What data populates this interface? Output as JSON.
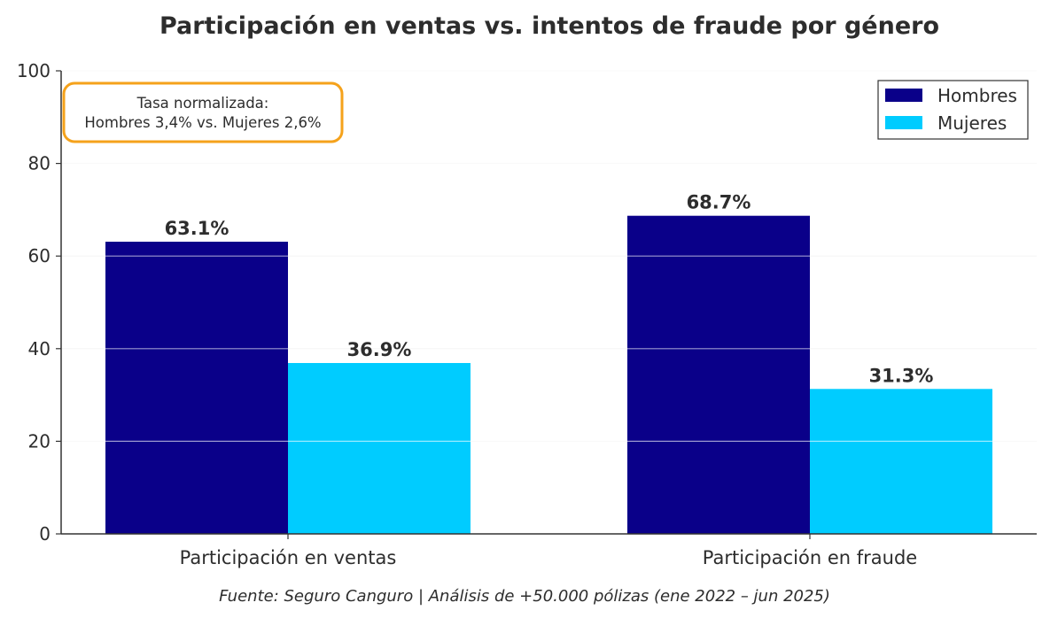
{
  "chart_data": {
    "type": "bar",
    "title": "Participación en ventas vs. intentos de fraude por género",
    "categories": [
      "Participación en ventas",
      "Participación en fraude"
    ],
    "series": [
      {
        "name": "Hombres",
        "values": [
          63.1,
          68.7
        ],
        "labels": [
          "63.1%",
          "68.7%"
        ],
        "color": "#0a0089"
      },
      {
        "name": "Mujeres",
        "values": [
          36.9,
          31.3
        ],
        "labels": [
          "36.9%",
          "31.3%"
        ],
        "color": "#00ccff"
      }
    ],
    "ylim": [
      0,
      100
    ],
    "yticks": [
      0,
      20,
      40,
      60,
      80,
      100
    ],
    "xlabel": "",
    "ylabel": "",
    "grid": true,
    "legend": "top-right",
    "annotation": {
      "line1": "Tasa normalizada:",
      "line2": "Hombres 3,4% vs. Mujeres 2,6%",
      "border_color": "#f5a21b"
    },
    "footnote": "Fuente: Seguro Canguro | Análisis de +50.000 pólizas (ene 2022 – jun 2025)"
  }
}
